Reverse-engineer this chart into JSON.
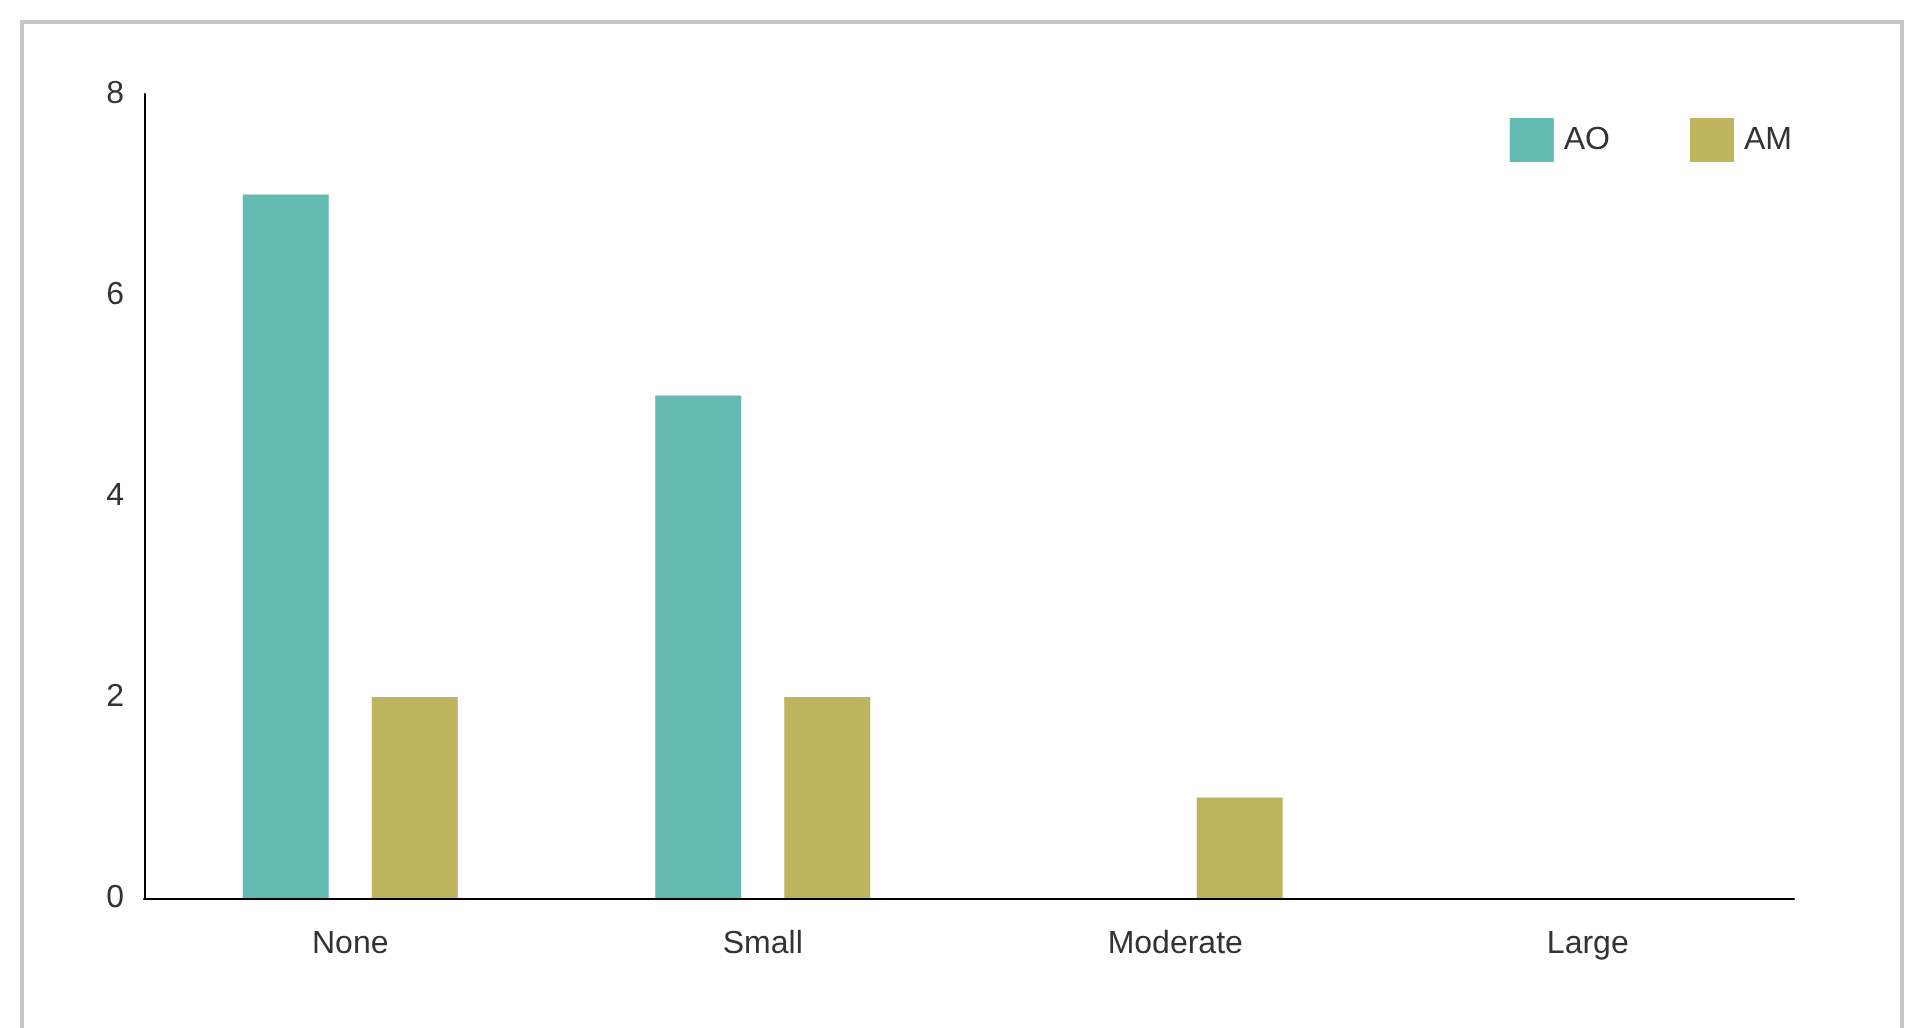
{
  "chart_data": {
    "type": "bar",
    "categories": [
      "None",
      "Small",
      "Moderate",
      "Large"
    ],
    "series": [
      {
        "name": "AO",
        "color": "#62bab0",
        "values": [
          7,
          5,
          0,
          0
        ]
      },
      {
        "name": "AM",
        "color": "#bfb45e",
        "values": [
          2,
          2,
          1,
          0
        ]
      }
    ],
    "ylim": [
      0,
      8
    ],
    "yticks": [
      0,
      2,
      4,
      6,
      8
    ],
    "grid": false,
    "legend": "top right"
  }
}
